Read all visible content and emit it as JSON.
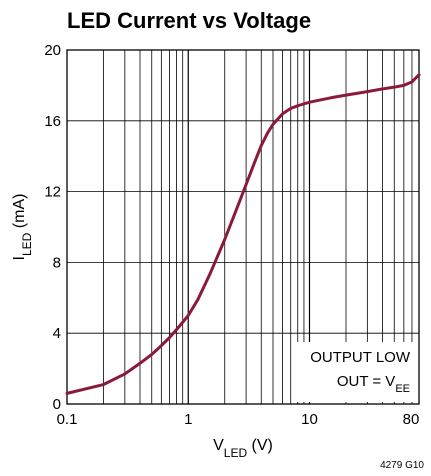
{
  "chart_data": {
    "type": "line",
    "title": "LED Current vs Voltage",
    "xlabel": {
      "main": "V",
      "sub": "LED",
      "unit": " (V)"
    },
    "ylabel": {
      "main": "I",
      "sub": "LED",
      "unit": " (mA)"
    },
    "x_scale": "log",
    "xlim": [
      0.1,
      80
    ],
    "ylim": [
      0,
      20
    ],
    "x_ticks": [
      {
        "value": 0.1,
        "label": "0.1"
      },
      {
        "value": 1,
        "label": "1"
      },
      {
        "value": 10,
        "label": "10"
      },
      {
        "value": 80,
        "label": "80"
      }
    ],
    "y_ticks": [
      {
        "value": 0,
        "label": "0"
      },
      {
        "value": 4,
        "label": "4"
      },
      {
        "value": 8,
        "label": "8"
      },
      {
        "value": 12,
        "label": "12"
      },
      {
        "value": 16,
        "label": "16"
      },
      {
        "value": 20,
        "label": "20"
      }
    ],
    "grid": true,
    "series": [
      {
        "color": "#8b1a3a",
        "x": [
          0.1,
          0.2,
          0.3,
          0.4,
          0.5,
          0.6,
          0.7,
          0.8,
          1,
          1.2,
          1.5,
          2,
          2.5,
          3,
          3.5,
          4,
          4.5,
          5,
          6,
          7,
          8,
          10,
          15,
          20,
          30,
          40,
          50,
          60,
          70,
          80
        ],
        "y": [
          0.6,
          1.1,
          1.7,
          2.3,
          2.8,
          3.3,
          3.75,
          4.2,
          5.0,
          5.9,
          7.3,
          9.3,
          11.0,
          12.4,
          13.6,
          14.6,
          15.3,
          15.8,
          16.4,
          16.7,
          16.85,
          17.05,
          17.3,
          17.45,
          17.65,
          17.8,
          17.9,
          18.0,
          18.2,
          18.6
        ]
      }
    ],
    "annotation": {
      "line1": "OUTPUT LOW",
      "line2_main": "OUT = V",
      "line2_sub": "EE"
    },
    "figure_id": "4279 G10"
  }
}
